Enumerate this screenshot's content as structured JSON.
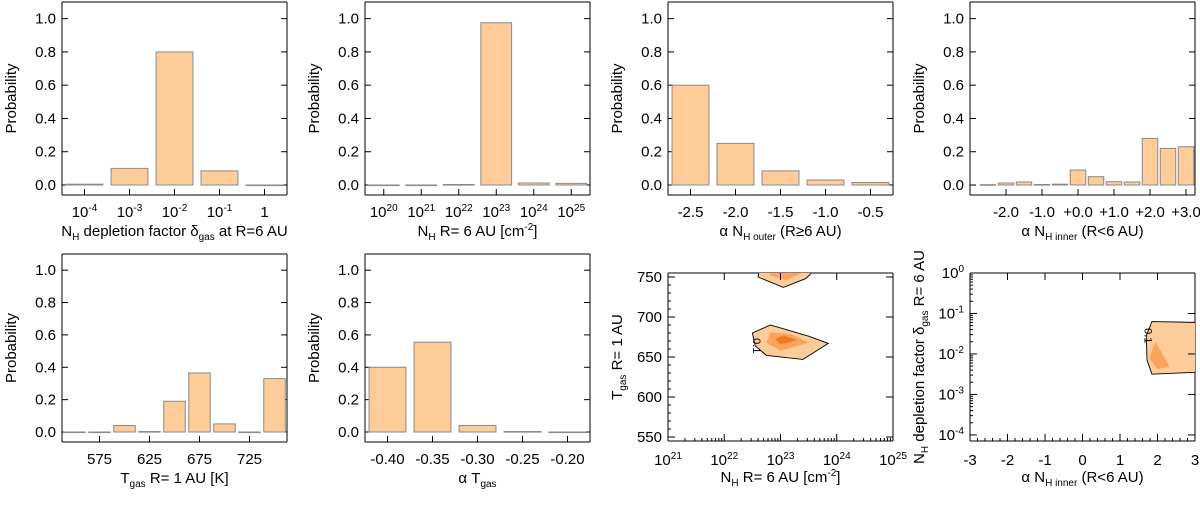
{
  "colors": {
    "bar_fill": "#FDCC99",
    "bar_stroke": "#8a8a8a",
    "contour_outer": "#FDCC99",
    "contour_mid": "#FBA35A",
    "contour_inner": "#F27A1E",
    "axis": "#000000"
  },
  "chart_data": [
    {
      "type": "bar",
      "ylabel": "Probability",
      "xlabel": "N_H depletion factor δ_gas at R=6 AU",
      "xlabel_parts": [
        [
          "N",
          ""
        ],
        [
          "H",
          "sub"
        ],
        [
          " depletion factor δ",
          ""
        ],
        [
          "gas",
          "sub"
        ],
        [
          " at R=6 AU",
          ""
        ]
      ],
      "categories": [
        "10^-4",
        "10^-3",
        "10^-2",
        "10^-1",
        "1"
      ],
      "tick_labels": [
        [
          [
            "10",
            ""
          ],
          [
            "-4",
            "sup"
          ]
        ],
        [
          [
            "10",
            ""
          ],
          [
            "-3",
            "sup"
          ]
        ],
        [
          [
            "10",
            ""
          ],
          [
            "-2",
            "sup"
          ]
        ],
        [
          [
            "10",
            ""
          ],
          [
            "-1",
            "sup"
          ]
        ],
        [
          [
            "1",
            ""
          ]
        ]
      ],
      "values": [
        0.005,
        0.1,
        0.8,
        0.085,
        0.0
      ],
      "ylim": [
        0,
        1.1
      ],
      "yticks": [
        "0.0",
        "0.2",
        "0.4",
        "0.6",
        "0.8",
        "1.0"
      ]
    },
    {
      "type": "bar",
      "ylabel": "Probability",
      "xlabel": "N_H R= 6 AU [cm^-2]",
      "xlabel_parts": [
        [
          "N",
          ""
        ],
        [
          "H",
          "sub"
        ],
        [
          " R= 6 AU [cm",
          ""
        ],
        [
          "-2",
          "sup"
        ],
        [
          "]",
          ""
        ]
      ],
      "categories": [
        "10^20",
        "10^21",
        "10^22",
        "10^23",
        "10^24",
        "10^25"
      ],
      "tick_labels": [
        [
          [
            "10",
            ""
          ],
          [
            "20",
            "sup"
          ]
        ],
        [
          [
            "10",
            ""
          ],
          [
            "21",
            "sup"
          ]
        ],
        [
          [
            "10",
            ""
          ],
          [
            "22",
            "sup"
          ]
        ],
        [
          [
            "10",
            ""
          ],
          [
            "23",
            "sup"
          ]
        ],
        [
          [
            "10",
            ""
          ],
          [
            "24",
            "sup"
          ]
        ],
        [
          [
            "10",
            ""
          ],
          [
            "25",
            "sup"
          ]
        ]
      ],
      "values": [
        0.0,
        0.0,
        0.003,
        0.975,
        0.012,
        0.01
      ],
      "ylim": [
        0,
        1.1
      ],
      "yticks": [
        "0.0",
        "0.2",
        "0.4",
        "0.6",
        "0.8",
        "1.0"
      ]
    },
    {
      "type": "bar",
      "ylabel": "Probability",
      "xlabel": "α N_H outer (R≥6 AU)",
      "xlabel_parts": [
        [
          "α N",
          ""
        ],
        [
          "H outer",
          "sub"
        ],
        [
          " (R≥6 AU)",
          ""
        ]
      ],
      "categories": [
        "-2.5",
        "-2.0",
        "-1.5",
        "-1.0",
        "-0.5"
      ],
      "tick_labels": [
        [
          [
            "-2.5",
            ""
          ]
        ],
        [
          [
            "-2.0",
            ""
          ]
        ],
        [
          [
            "-1.5",
            ""
          ]
        ],
        [
          [
            "-1.0",
            ""
          ]
        ],
        [
          [
            "-0.5",
            ""
          ]
        ]
      ],
      "values": [
        0.6,
        0.25,
        0.085,
        0.03,
        0.015
      ],
      "ylim": [
        0,
        1.1
      ],
      "yticks": [
        "0.0",
        "0.2",
        "0.4",
        "0.6",
        "0.8",
        "1.0"
      ]
    },
    {
      "type": "bar",
      "ylabel": "Probability",
      "xlabel": "α N_H inner (R<6 AU)",
      "xlabel_parts": [
        [
          "α N",
          ""
        ],
        [
          "H inner",
          "sub"
        ],
        [
          " (R<6 AU)",
          ""
        ]
      ],
      "x": [
        -2.5,
        -2.0,
        -1.5,
        -1.0,
        -0.5,
        0.0,
        0.5,
        1.0,
        1.5,
        2.0,
        2.5,
        3.0
      ],
      "values": [
        0.002,
        0.012,
        0.018,
        0.003,
        0.005,
        0.09,
        0.05,
        0.02,
        0.018,
        0.28,
        0.22,
        0.23
      ],
      "xlim": [
        -3.0,
        3.25
      ],
      "xtick_values": [
        -2.0,
        -1.0,
        0.0,
        1.0,
        2.0,
        3.0
      ],
      "tick_labels": [
        [
          [
            "-2.0",
            ""
          ]
        ],
        [
          [
            "-1.0",
            ""
          ]
        ],
        [
          [
            "+0.0",
            ""
          ]
        ],
        [
          [
            "+1.0",
            ""
          ]
        ],
        [
          [
            "+2.0",
            ""
          ]
        ],
        [
          [
            "+3.0",
            ""
          ]
        ]
      ],
      "ylim": [
        0,
        1.1
      ],
      "yticks": [
        "0.0",
        "0.2",
        "0.4",
        "0.6",
        "0.8",
        "1.0"
      ]
    },
    {
      "type": "bar",
      "ylabel": "Probability",
      "xlabel": "T_gas R= 1 AU [K]",
      "xlabel_parts": [
        [
          "T",
          ""
        ],
        [
          "gas",
          "sub"
        ],
        [
          " R= 1 AU [K]",
          ""
        ]
      ],
      "x": [
        550,
        575,
        600,
        625,
        650,
        675,
        700,
        725,
        750
      ],
      "values": [
        0.0,
        0.0,
        0.04,
        0.003,
        0.19,
        0.365,
        0.05,
        0.0,
        0.33
      ],
      "xlim": [
        537.5,
        762.5
      ],
      "xtick_values": [
        575,
        625,
        675,
        725
      ],
      "tick_labels": [
        [
          [
            "575",
            ""
          ]
        ],
        [
          [
            "625",
            ""
          ]
        ],
        [
          [
            "675",
            ""
          ]
        ],
        [
          [
            "725",
            ""
          ]
        ]
      ],
      "ylim": [
        0,
        1.1
      ],
      "yticks": [
        "0.0",
        "0.2",
        "0.4",
        "0.6",
        "0.8",
        "1.0"
      ]
    },
    {
      "type": "bar",
      "ylabel": "Probability",
      "xlabel": "α T_gas",
      "xlabel_parts": [
        [
          "α T",
          ""
        ],
        [
          "gas",
          "sub"
        ]
      ],
      "categories": [
        "-0.40",
        "-0.35",
        "-0.30",
        "-0.25",
        "-0.20"
      ],
      "tick_labels": [
        [
          [
            "-0.40",
            ""
          ]
        ],
        [
          [
            "-0.35",
            ""
          ]
        ],
        [
          [
            "-0.30",
            ""
          ]
        ],
        [
          [
            "-0.25",
            ""
          ]
        ],
        [
          [
            "-0.20",
            ""
          ]
        ]
      ],
      "values": [
        0.4,
        0.555,
        0.04,
        0.003,
        0.0
      ],
      "ylim": [
        0,
        1.1
      ],
      "yticks": [
        "0.0",
        "0.2",
        "0.4",
        "0.6",
        "0.8",
        "1.0"
      ]
    },
    {
      "type": "heatmap",
      "subtype": "contour",
      "ylabel": "T_gas R= 1 AU",
      "ylabel_parts": [
        [
          "T",
          ""
        ],
        [
          "gas",
          "sub"
        ],
        [
          " R= 1 AU",
          ""
        ]
      ],
      "xlabel": "N_H R= 6 AU [cm^-2]",
      "xlabel_parts": [
        [
          "N",
          ""
        ],
        [
          "H",
          "sub"
        ],
        [
          " R= 6 AU [cm",
          ""
        ],
        [
          "-2",
          "sup"
        ],
        [
          "]",
          ""
        ]
      ],
      "x_scale": "log",
      "xlim": [
        21,
        25
      ],
      "ylim": [
        545,
        755
      ],
      "xtick_labels": [
        [
          [
            "10",
            ""
          ],
          [
            "21",
            "sup"
          ]
        ],
        [
          [
            "10",
            ""
          ],
          [
            "22",
            "sup"
          ]
        ],
        [
          [
            "10",
            ""
          ],
          [
            "23",
            "sup"
          ]
        ],
        [
          [
            "10",
            ""
          ],
          [
            "24",
            "sup"
          ]
        ],
        [
          [
            "10",
            ""
          ],
          [
            "25",
            "sup"
          ]
        ]
      ],
      "yticks": [
        "550",
        "600",
        "650",
        "700",
        "750"
      ],
      "contour_label": "0.1",
      "regions": [
        {
          "level": "outer",
          "points": [
            [
              22.62,
              757
            ],
            [
              22.6,
              750
            ],
            [
              23.05,
              737
            ],
            [
              23.45,
              748
            ],
            [
              23.58,
              757
            ]
          ]
        },
        {
          "level": "mid",
          "points": [
            [
              22.8,
              757
            ],
            [
              22.82,
              752
            ],
            [
              23.1,
              746
            ],
            [
              23.35,
              754
            ],
            [
              23.4,
              757
            ]
          ]
        },
        {
          "level": "outer",
          "points": [
            [
              22.55,
              664
            ],
            [
              22.5,
              680
            ],
            [
              22.82,
              690
            ],
            [
              23.5,
              676
            ],
            [
              23.85,
              667
            ],
            [
              23.4,
              647
            ],
            [
              22.75,
              652
            ]
          ]
        },
        {
          "level": "mid",
          "points": [
            [
              22.75,
              668
            ],
            [
              22.83,
              681
            ],
            [
              23.2,
              678
            ],
            [
              23.5,
              668
            ],
            [
              23.0,
              658
            ]
          ]
        },
        {
          "level": "inner",
          "points": [
            [
              22.9,
              672
            ],
            [
              23.05,
              677
            ],
            [
              23.3,
              671
            ],
            [
              23.0,
              666
            ]
          ]
        }
      ]
    },
    {
      "type": "heatmap",
      "subtype": "contour",
      "ylabel": "N_H depletion factor δ_gas R= 6 AU",
      "ylabel_parts": [
        [
          "N",
          ""
        ],
        [
          "H",
          "sub"
        ],
        [
          " depletion factor δ",
          ""
        ],
        [
          "gas",
          "sub"
        ],
        [
          " R= 6 AU",
          ""
        ]
      ],
      "xlabel": "α N_H inner (R<6 AU)",
      "xlabel_parts": [
        [
          "α N",
          ""
        ],
        [
          "H inner",
          "sub"
        ],
        [
          " (R<6 AU)",
          ""
        ]
      ],
      "x_scale": "linear",
      "y_scale": "log",
      "xlim": [
        -3,
        3
      ],
      "ylim": [
        -4.15,
        0
      ],
      "xtick_labels": [
        [
          [
            "-3",
            ""
          ]
        ],
        [
          [
            "-2",
            ""
          ]
        ],
        [
          [
            "-1",
            ""
          ]
        ],
        [
          [
            "0",
            ""
          ]
        ],
        [
          [
            "1",
            ""
          ]
        ],
        [
          [
            "2",
            ""
          ]
        ],
        [
          [
            "3",
            ""
          ]
        ]
      ],
      "ytick_labels": [
        [
          [
            "10",
            ""
          ],
          [
            "-4",
            "sup"
          ]
        ],
        [
          [
            "10",
            ""
          ],
          [
            "-3",
            "sup"
          ]
        ],
        [
          [
            "10",
            ""
          ],
          [
            "-2",
            "sup"
          ]
        ],
        [
          [
            "10",
            ""
          ],
          [
            "-1",
            "sup"
          ]
        ],
        [
          [
            "10",
            ""
          ],
          [
            "0",
            "sup"
          ]
        ]
      ],
      "contour_label": "0.1",
      "regions": [
        {
          "level": "outer",
          "points": [
            [
              1.7,
              -1.55
            ],
            [
              1.85,
              -1.2
            ],
            [
              3.05,
              -1.22
            ],
            [
              3.05,
              -2.45
            ],
            [
              1.85,
              -2.5
            ],
            [
              1.72,
              -2.15
            ]
          ]
        },
        {
          "level": "mid",
          "points": [
            [
              1.78,
              -2.1
            ],
            [
              1.95,
              -1.7
            ],
            [
              2.32,
              -2.32
            ],
            [
              2.0,
              -2.38
            ]
          ]
        }
      ]
    }
  ]
}
